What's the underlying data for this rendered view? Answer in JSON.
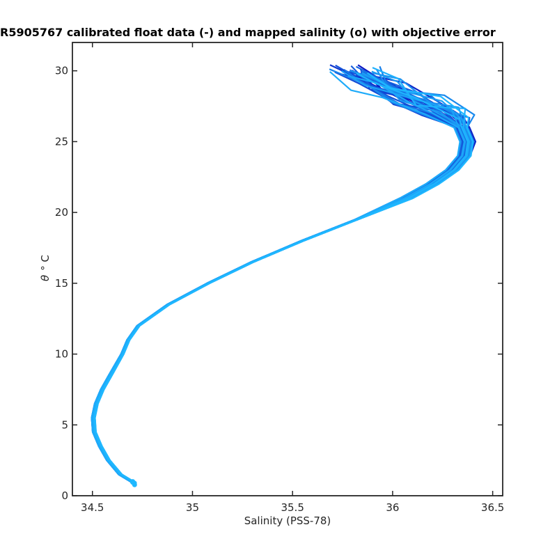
{
  "chart_data": {
    "type": "line",
    "title": "R5905767 calibrated float data (-) and mapped salinity (o) with objective error",
    "xlabel": "Salinity (PSS-78)",
    "ylabel_symbol": "θ",
    "ylabel_unit": "° C",
    "xlim": [
      34.4,
      36.55
    ],
    "ylim": [
      0,
      32
    ],
    "xticks": [
      34.5,
      35,
      35.5,
      36,
      36.5
    ],
    "xtick_labels": [
      "34.5",
      "35",
      "35.5",
      "36",
      "36.5"
    ],
    "yticks": [
      0,
      5,
      10,
      15,
      20,
      25,
      30
    ],
    "ytick_labels": [
      "0",
      "5",
      "10",
      "15",
      "20",
      "25",
      "30"
    ],
    "grid": false,
    "base_profile": {
      "theta": [
        0.9,
        1.5,
        2.5,
        3.5,
        4.5,
        5.5,
        6.5,
        7.5,
        8.5,
        10,
        11,
        12,
        13.5,
        15,
        16.5,
        18,
        19.5,
        21,
        22,
        23,
        24,
        25,
        26,
        27,
        28,
        29,
        30
      ],
      "salinity": [
        34.71,
        34.64,
        34.58,
        34.54,
        34.51,
        34.505,
        34.52,
        34.55,
        34.59,
        34.65,
        34.68,
        34.73,
        34.88,
        35.08,
        35.3,
        35.55,
        35.82,
        36.07,
        36.2,
        36.3,
        36.36,
        36.39,
        36.36,
        36.27,
        36.12,
        35.95,
        35.82
      ]
    },
    "profile_count": 40,
    "color_range": [
      "#0a10c0",
      "#1fb8ff"
    ]
  }
}
